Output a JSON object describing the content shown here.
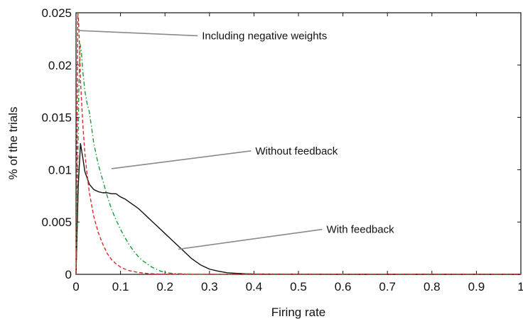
{
  "chart_data": {
    "type": "line",
    "title": "",
    "xlabel": "Firing rate",
    "ylabel": "% of the trials",
    "xlim": [
      0,
      1
    ],
    "ylim": [
      0,
      0.025
    ],
    "x_ticks": [
      0,
      0.1,
      0.2,
      0.3,
      0.4,
      0.5,
      0.6,
      0.7,
      0.8,
      0.9,
      1
    ],
    "x_tick_labels": [
      "0",
      "0.1",
      "0.2",
      "0.3",
      "0.4",
      "0.5",
      "0.6",
      "0.7",
      "0.8",
      "0.9",
      "1"
    ],
    "y_ticks": [
      0,
      0.005,
      0.01,
      0.015,
      0.02,
      0.025
    ],
    "y_tick_labels": [
      "0",
      "0.005",
      "0.01",
      "0.015",
      "0.02",
      "0.025"
    ],
    "grid": false,
    "legend": "none",
    "series": [
      {
        "key": "with_feedback",
        "color": "#111111",
        "dash": "solid",
        "x": [
          0,
          0.005,
          0.01,
          0.015,
          0.02,
          0.03,
          0.04,
          0.05,
          0.06,
          0.07,
          0.08,
          0.09,
          0.1,
          0.11,
          0.12,
          0.13,
          0.14,
          0.15,
          0.16,
          0.17,
          0.18,
          0.19,
          0.2,
          0.21,
          0.22,
          0.23,
          0.24,
          0.25,
          0.26,
          0.27,
          0.28,
          0.3,
          0.32,
          0.34,
          0.36,
          0.38,
          0.4,
          0.45,
          0.5,
          0.6,
          0.7,
          0.8,
          0.9,
          1.0
        ],
        "y": [
          0,
          0.0085,
          0.0125,
          0.0112,
          0.0098,
          0.0086,
          0.0081,
          0.0079,
          0.0078,
          0.0078,
          0.0077,
          0.0077,
          0.0074,
          0.0072,
          0.0069,
          0.0066,
          0.0063,
          0.0059,
          0.0055,
          0.0051,
          0.0047,
          0.0043,
          0.0039,
          0.0035,
          0.0031,
          0.0027,
          0.0023,
          0.0019,
          0.0015,
          0.0012,
          0.0009,
          0.0005,
          0.0003,
          0.00015,
          0.0001,
          5e-05,
          3e-05,
          2e-05,
          1e-05,
          0,
          0,
          0,
          0,
          0
        ]
      },
      {
        "key": "without_feedback",
        "color": "#1a9a3a",
        "dash": "dashdot",
        "x": [
          0,
          0.003,
          0.006,
          0.009,
          0.012,
          0.015,
          0.02,
          0.025,
          0.03,
          0.035,
          0.04,
          0.05,
          0.06,
          0.07,
          0.08,
          0.09,
          0.1,
          0.11,
          0.12,
          0.13,
          0.14,
          0.15,
          0.16,
          0.17,
          0.18,
          0.19,
          0.2,
          0.21,
          0.22,
          0.24,
          0.26,
          0.3,
          0.4,
          0.5,
          1.0
        ],
        "y": [
          0,
          0.008,
          0.017,
          0.022,
          0.0213,
          0.0195,
          0.0175,
          0.0163,
          0.0155,
          0.014,
          0.0125,
          0.0105,
          0.009,
          0.0075,
          0.0062,
          0.0052,
          0.0043,
          0.0035,
          0.0028,
          0.0022,
          0.0017,
          0.0013,
          0.001,
          0.0007,
          0.0005,
          0.0003,
          0.0002,
          0.00012,
          8e-05,
          4e-05,
          2e-05,
          0,
          0,
          0,
          0
        ]
      },
      {
        "key": "including_negative_weights",
        "color": "#d42a2a",
        "dash": "dashed",
        "x": [
          0,
          0.002,
          0.004,
          0.006,
          0.008,
          0.01,
          0.015,
          0.02,
          0.025,
          0.03,
          0.04,
          0.05,
          0.06,
          0.07,
          0.08,
          0.09,
          0.1,
          0.11,
          0.12,
          0.14,
          0.16,
          0.18,
          0.2,
          0.25,
          0.3,
          0.4,
          1.0
        ],
        "y": [
          0,
          0.012,
          0.025,
          0.024,
          0.0215,
          0.0185,
          0.0145,
          0.0115,
          0.0095,
          0.0078,
          0.0055,
          0.004,
          0.0029,
          0.002,
          0.0014,
          0.001,
          0.0007,
          0.0005,
          0.00035,
          0.00018,
          8e-05,
          4e-05,
          2e-05,
          1e-05,
          0,
          0,
          0
        ]
      }
    ],
    "annotations": [
      {
        "text": "Including negative weights",
        "target_x": 0.005,
        "target_y": 0.0233,
        "text_x": 0.28,
        "text_y": 0.0228
      },
      {
        "text": "Without feedback",
        "target_x": 0.08,
        "target_y": 0.0101,
        "text_x": 0.4,
        "text_y": 0.0118
      },
      {
        "text": "With feedback",
        "target_x": 0.23,
        "target_y": 0.0024,
        "text_x": 0.56,
        "text_y": 0.0043
      }
    ]
  }
}
